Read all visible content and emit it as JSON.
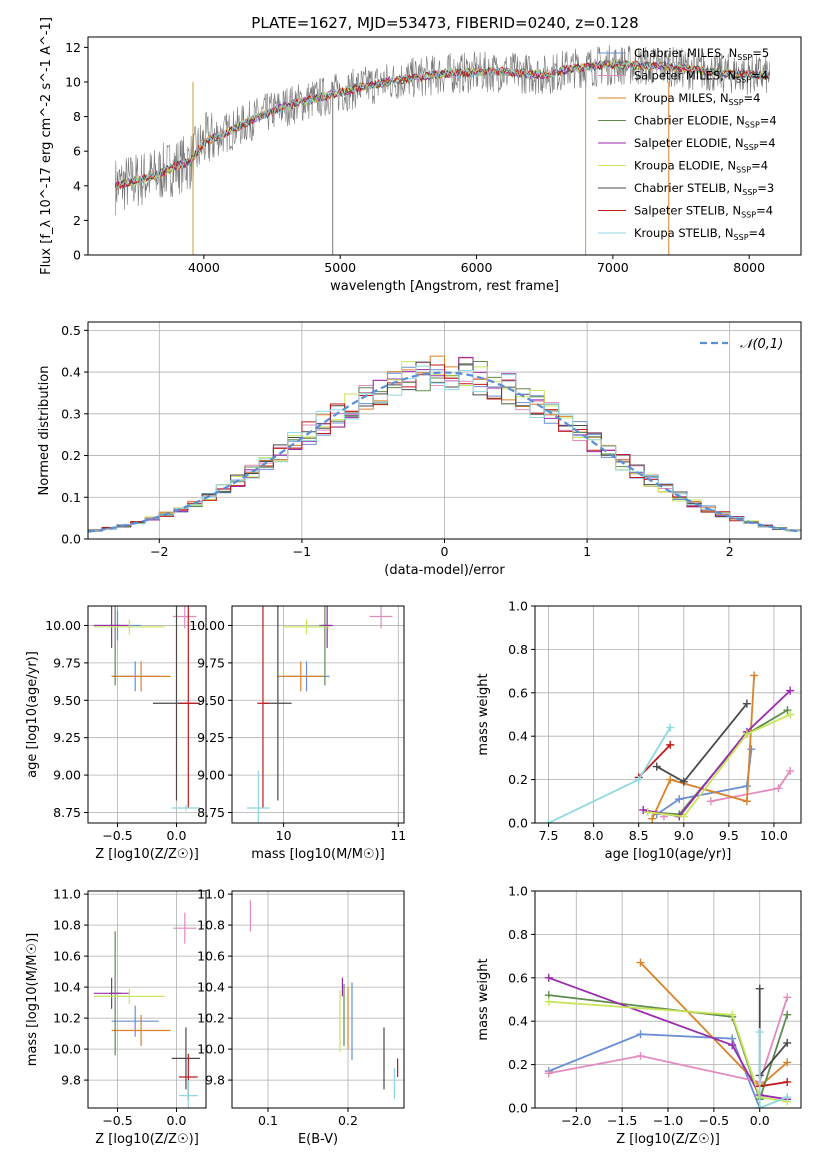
{
  "figure_title": "PLATE=1627, MJD=53473, FIBERID=0240, z=0.128",
  "models": [
    {
      "name": "Chabrier MILES",
      "nssp": "5",
      "color": "#6a8fd6"
    },
    {
      "name": "Salpeter MILES",
      "nssp": "4",
      "color": "#e38bbd"
    },
    {
      "name": "Kroupa MILES",
      "nssp": "4",
      "color": "#d9822b"
    },
    {
      "name": "Chabrier ELODIE",
      "nssp": "4",
      "color": "#5e8b4e"
    },
    {
      "name": "Salpeter ELODIE",
      "nssp": "4",
      "color": "#9a2aae"
    },
    {
      "name": "Kroupa ELODIE",
      "nssp": "4",
      "color": "#c8e65c"
    },
    {
      "name": "Chabrier STELIB",
      "nssp": "3",
      "color": "#4a4a4a"
    },
    {
      "name": "Salpeter STELIB",
      "nssp": "4",
      "color": "#c01a1a"
    },
    {
      "name": "Kroupa STELIB",
      "nssp": "4",
      "color": "#8fd8e0"
    }
  ],
  "chart_data": [
    {
      "id": "spectrum",
      "type": "line",
      "xlabel": "wavelength [Angstrom, rest frame]",
      "ylabel": "Flux [f_λ 10^-17 erg cm^-2 s^-1 A^-1]",
      "xlim": [
        3150,
        8380
      ],
      "ylim": [
        0,
        12.6
      ],
      "xticks": [
        4000,
        5000,
        6000,
        7000,
        8000
      ],
      "yticks": [
        0,
        2,
        4,
        6,
        8,
        10,
        12
      ],
      "continuum": [
        [
          3350,
          4.0
        ],
        [
          3500,
          4.3
        ],
        [
          3650,
          4.6
        ],
        [
          3750,
          5.0
        ],
        [
          3900,
          5.4
        ],
        [
          4000,
          6.5
        ],
        [
          4200,
          7.2
        ],
        [
          4400,
          8.0
        ],
        [
          4600,
          8.6
        ],
        [
          4800,
          9.0
        ],
        [
          5000,
          9.4
        ],
        [
          5200,
          9.8
        ],
        [
          5500,
          10.2
        ],
        [
          5800,
          10.5
        ],
        [
          6200,
          10.6
        ],
        [
          6500,
          10.4
        ],
        [
          6700,
          10.8
        ],
        [
          7000,
          11.0
        ],
        [
          7400,
          10.9
        ],
        [
          7800,
          10.5
        ],
        [
          8100,
          10.4
        ]
      ],
      "grid": false,
      "legend": "upper right"
    },
    {
      "id": "residuals",
      "type": "line",
      "xlabel": "(data-model)/error",
      "ylabel": "Normed distribution",
      "xlim": [
        -2.5,
        2.5
      ],
      "ylim": [
        0,
        0.52
      ],
      "xticks": [
        -2,
        -1,
        0,
        1,
        2
      ],
      "yticks": [
        0.0,
        0.1,
        0.2,
        0.3,
        0.4,
        0.5
      ],
      "legend_label": "𝒩(0,1)",
      "grid": true,
      "legend": "upper right"
    },
    {
      "id": "age_vs_Z",
      "type": "scatter",
      "xlabel": "Z [log10(Z/Z☉)]",
      "ylabel": "age  [log10(age/yr)]",
      "xlim": [
        -0.75,
        0.25
      ],
      "ylim": [
        8.68,
        10.13
      ],
      "xticks": [
        -0.5,
        0.0
      ],
      "yticks": [
        8.75,
        9.0,
        9.25,
        9.5,
        9.75,
        10.0
      ],
      "points": [
        {
          "m": 0,
          "x": -0.35,
          "y": 9.66,
          "xerr": 0.2,
          "yerr": 0.1
        },
        {
          "m": 0,
          "x": -0.5,
          "y": 10.0,
          "xerr": 0.2,
          "yerr": 0.1
        },
        {
          "m": 1,
          "x": 0.07,
          "y": 10.06,
          "xerr": 0.1,
          "yerr": 0.08
        },
        {
          "m": 2,
          "x": -0.3,
          "y": 9.66,
          "xerr": 0.25,
          "yerr": 0.1
        },
        {
          "m": 3,
          "x": -0.52,
          "y": 10.0,
          "xerr": 0.05,
          "yerr": 0.4
        },
        {
          "m": 4,
          "x": -0.55,
          "y": 10.0,
          "xerr": 0.15,
          "yerr": 0.15
        },
        {
          "m": 5,
          "x": -0.4,
          "y": 9.99,
          "xerr": 0.3,
          "yerr": 0.05
        },
        {
          "m": 6,
          "x": 0.0,
          "y": 9.48,
          "xerr": 0.2,
          "yerr": 0.65
        },
        {
          "m": 7,
          "x": 0.1,
          "y": 9.48,
          "xerr": 0.08,
          "yerr": 0.7
        },
        {
          "m": 8,
          "x": 0.08,
          "y": 8.78,
          "xerr": 0.12,
          "yerr": 0.02
        }
      ],
      "grid": true
    },
    {
      "id": "age_vs_mass",
      "type": "scatter",
      "xlabel": "mass [log10(M/M☉)]",
      "ylabel": "",
      "xlim": [
        9.55,
        11.05
      ],
      "ylim": [
        8.68,
        10.13
      ],
      "xticks": [
        10,
        11
      ],
      "yticks": [
        8.75,
        9.0,
        9.25,
        9.5,
        9.75,
        10.0
      ],
      "points": [
        {
          "m": 0,
          "x": 10.2,
          "y": 9.66,
          "xerr": 0.2,
          "yerr": 0.1
        },
        {
          "m": 1,
          "x": 10.85,
          "y": 10.06,
          "xerr": 0.1,
          "yerr": 0.08
        },
        {
          "m": 2,
          "x": 10.15,
          "y": 9.66,
          "xerr": 0.2,
          "yerr": 0.1
        },
        {
          "m": 3,
          "x": 10.36,
          "y": 10.0,
          "xerr": 0.05,
          "yerr": 0.4
        },
        {
          "m": 4,
          "x": 10.38,
          "y": 10.0,
          "xerr": 0.05,
          "yerr": 0.15
        },
        {
          "m": 5,
          "x": 10.2,
          "y": 9.99,
          "xerr": 0.2,
          "yerr": 0.05
        },
        {
          "m": 6,
          "x": 9.95,
          "y": 9.48,
          "xerr": 0.12,
          "yerr": 0.65
        },
        {
          "m": 7,
          "x": 9.82,
          "y": 9.48,
          "xerr": 0.05,
          "yerr": 0.7
        },
        {
          "m": 8,
          "x": 9.78,
          "y": 8.78,
          "xerr": 0.1,
          "yerr": 0.25
        }
      ],
      "grid": true
    },
    {
      "id": "massweight_vs_age",
      "type": "line",
      "xlabel": "age  [log10(age/yr)]",
      "ylabel": "mass weight",
      "xlim": [
        7.35,
        10.3
      ],
      "ylim": [
        0,
        1
      ],
      "xticks": [
        7.5,
        8.0,
        8.5,
        9.0,
        9.5,
        10.0
      ],
      "yticks": [
        0.0,
        0.2,
        0.4,
        0.6,
        0.8,
        1.0
      ],
      "series": [
        {
          "m": 0,
          "x": [
            8.7,
            8.95,
            9.7,
            9.75
          ],
          "y": [
            0.04,
            0.11,
            0.17,
            0.34
          ]
        },
        {
          "m": 1,
          "x": 8.78,
          "y": 0.03,
          "x2": [
            9.3,
            10.05,
            10.18
          ],
          "y2": [
            0.1,
            0.16,
            0.24
          ]
        },
        {
          "m": 2,
          "x": [
            8.65,
            8.85,
            9.7,
            9.78
          ],
          "y": [
            0.02,
            0.2,
            0.1,
            0.68
          ]
        },
        {
          "m": 3,
          "x": [
            8.6,
            8.95,
            9.7,
            10.15
          ],
          "y": [
            0.05,
            0.04,
            0.41,
            0.52
          ]
        },
        {
          "m": 4,
          "x": [
            8.55,
            8.95,
            9.7,
            10.18
          ],
          "y": [
            0.06,
            0.03,
            0.42,
            0.61
          ]
        },
        {
          "m": 5,
          "x": [
            8.6,
            9.0,
            9.7,
            10.18
          ],
          "y": [
            0.05,
            0.03,
            0.41,
            0.5
          ]
        },
        {
          "m": 6,
          "x": [
            8.7,
            9.0,
            9.7
          ],
          "y": [
            0.26,
            0.19,
            0.55
          ]
        },
        {
          "m": 7,
          "x": [
            8.5,
            8.85
          ],
          "y": [
            0.21,
            0.36
          ]
        },
        {
          "m": 8,
          "x": [
            7.5,
            8.5,
            8.85
          ],
          "y": [
            0.0,
            0.2,
            0.44
          ]
        }
      ],
      "grid": true
    },
    {
      "id": "mass_vs_Z",
      "type": "scatter",
      "xlabel": "Z [log10(Z/Z☉)]",
      "ylabel": "mass [log10(M/M☉)]",
      "xlim": [
        -0.75,
        0.25
      ],
      "ylim": [
        9.62,
        11.02
      ],
      "xticks": [
        -0.5,
        0.0
      ],
      "yticks": [
        9.8,
        10.0,
        10.2,
        10.4,
        10.6,
        10.8,
        11.0
      ],
      "points": [
        {
          "m": 0,
          "x": -0.35,
          "y": 10.18,
          "xerr": 0.2,
          "yerr": 0.1
        },
        {
          "m": 1,
          "x": 0.07,
          "y": 10.78,
          "xerr": 0.1,
          "yerr": 0.1
        },
        {
          "m": 2,
          "x": -0.3,
          "y": 10.12,
          "xerr": 0.25,
          "yerr": 0.1
        },
        {
          "m": 3,
          "x": -0.52,
          "y": 10.36,
          "xerr": 0.05,
          "yerr": 0.4
        },
        {
          "m": 4,
          "x": -0.55,
          "y": 10.36,
          "xerr": 0.15,
          "yerr": 0.1
        },
        {
          "m": 5,
          "x": -0.4,
          "y": 10.34,
          "xerr": 0.3,
          "yerr": 0.05
        },
        {
          "m": 6,
          "x": 0.08,
          "y": 9.94,
          "xerr": 0.12,
          "yerr": 0.2
        },
        {
          "m": 7,
          "x": 0.1,
          "y": 9.82,
          "xerr": 0.08,
          "yerr": 0.15
        },
        {
          "m": 8,
          "x": 0.1,
          "y": 9.7,
          "xerr": 0.08,
          "yerr": 0.1
        }
      ],
      "grid": true
    },
    {
      "id": "mass_vs_ebv",
      "type": "scatter",
      "xlabel": "E(B-V)",
      "ylabel": "",
      "xlim": [
        0.055,
        0.27
      ],
      "ylim": [
        9.62,
        11.02
      ],
      "xticks": [
        0.1,
        0.2
      ],
      "yticks": [
        9.8,
        10.0,
        10.2,
        10.4,
        10.6,
        10.8,
        11.0
      ],
      "points": [
        {
          "m": 0,
          "x": 0.205,
          "y": 10.18,
          "yerr": 0.25
        },
        {
          "m": 1,
          "x": 0.078,
          "y": 10.86,
          "yerr": 0.1
        },
        {
          "m": 2,
          "x": 0.2,
          "y": 10.2,
          "yerr": 0.2
        },
        {
          "m": 3,
          "x": 0.195,
          "y": 10.22,
          "yerr": 0.2
        },
        {
          "m": 4,
          "x": 0.193,
          "y": 10.4,
          "yerr": 0.06
        },
        {
          "m": 5,
          "x": 0.19,
          "y": 10.18,
          "yerr": 0.2
        },
        {
          "m": 6,
          "x": 0.245,
          "y": 9.94,
          "yerr": 0.2
        },
        {
          "m": 7,
          "x": 0.262,
          "y": 9.88,
          "yerr": 0.06
        },
        {
          "m": 8,
          "x": 0.258,
          "y": 9.78,
          "yerr": 0.1
        }
      ],
      "grid": true
    },
    {
      "id": "massweight_vs_Z",
      "type": "line",
      "xlabel": "Z [log10(Z/Z☉)]",
      "ylabel": "mass weight",
      "xlim": [
        -2.45,
        0.45
      ],
      "ylim": [
        0,
        1
      ],
      "xticks": [
        -2.0,
        -1.5,
        -1.0,
        -0.5,
        0.0
      ],
      "yticks": [
        0.0,
        0.2,
        0.4,
        0.6,
        0.8,
        1.0
      ],
      "series": [
        {
          "m": 0,
          "x": [
            -2.3,
            -1.3,
            -0.3,
            0.0
          ],
          "y": [
            0.17,
            0.34,
            0.32,
            0.0
          ]
        },
        {
          "m": 1,
          "x": [
            -2.3,
            -1.3,
            0.0,
            0.3
          ],
          "y": [
            0.16,
            0.24,
            0.12,
            0.51
          ]
        },
        {
          "m": 2,
          "x": [
            -1.3,
            0.0,
            0.3
          ],
          "y": [
            0.67,
            0.1,
            0.21
          ]
        },
        {
          "m": 3,
          "x": [
            -2.3,
            -0.3,
            0.0,
            0.3
          ],
          "y": [
            0.52,
            0.42,
            0.04,
            0.43
          ]
        },
        {
          "m": 4,
          "x": [
            -2.3,
            -0.3,
            0.0,
            0.3
          ],
          "y": [
            0.6,
            0.29,
            0.06,
            0.04
          ]
        },
        {
          "m": 5,
          "x": [
            -2.3,
            -0.3,
            0.0,
            0.3
          ],
          "y": [
            0.49,
            0.43,
            0.05,
            0.03
          ]
        },
        {
          "m": 6,
          "x": [
            0.0,
            0.0,
            0.3
          ],
          "y": [
            0.55,
            0.15,
            0.3
          ]
        },
        {
          "m": 7,
          "x": [
            0.0,
            0.3
          ],
          "y": [
            0.1,
            0.12
          ]
        },
        {
          "m": 8,
          "x": [
            0.0,
            0.0,
            0.3
          ],
          "y": [
            0.35,
            0.0,
            0.05
          ]
        }
      ],
      "grid": true
    }
  ]
}
